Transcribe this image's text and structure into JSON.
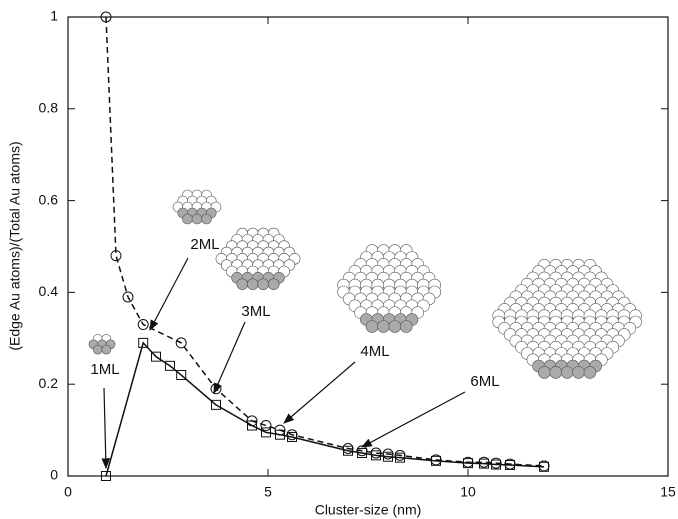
{
  "chart_data": {
    "type": "line",
    "x_label": "Cluster-size (nm)",
    "y_label": "(Edge Au atoms)/(Total Au atoms)",
    "xlim": [
      0,
      15
    ],
    "xticks": [
      0,
      5,
      10,
      15
    ],
    "ylim": [
      0,
      1
    ],
    "yticks": [
      0,
      0.2,
      0.4,
      0.6,
      0.8,
      1
    ],
    "grid": false,
    "series": [
      {
        "color": "#111111",
        "line_style": "dashed",
        "marker": "circle",
        "x": [
          0.95,
          1.2,
          1.5,
          1.88,
          2.83,
          3.7,
          4.6,
          4.95,
          5.3,
          5.6,
          7.0,
          7.35,
          7.7,
          8.0,
          8.3,
          9.2,
          10.0,
          10.4,
          10.7,
          11.05,
          11.9
        ],
        "values": [
          1.0,
          0.48,
          0.39,
          0.33,
          0.29,
          0.19,
          0.12,
          0.11,
          0.1,
          0.09,
          0.06,
          0.055,
          0.05,
          0.048,
          0.045,
          0.035,
          0.03,
          0.03,
          0.028,
          0.026,
          0.022
        ]
      },
      {
        "color": "#111111",
        "line_style": "solid",
        "marker": "square",
        "x": [
          0.95,
          1.88,
          2.2,
          2.55,
          2.83,
          3.7,
          4.6,
          4.95,
          5.3,
          5.6,
          7.0,
          7.35,
          7.7,
          8.0,
          8.3,
          9.2,
          10.0,
          10.4,
          10.7,
          11.05,
          11.9
        ],
        "values": [
          0,
          0.29,
          0.26,
          0.24,
          0.22,
          0.155,
          0.11,
          0.095,
          0.09,
          0.085,
          0.055,
          0.05,
          0.045,
          0.042,
          0.04,
          0.033,
          0.028,
          0.027,
          0.025,
          0.024,
          0.02
        ]
      }
    ],
    "annotations": [
      {
        "text": "1ML"
      },
      {
        "text": "2ML"
      },
      {
        "text": "3ML"
      },
      {
        "text": "4ML"
      },
      {
        "text": "6ML"
      }
    ]
  }
}
